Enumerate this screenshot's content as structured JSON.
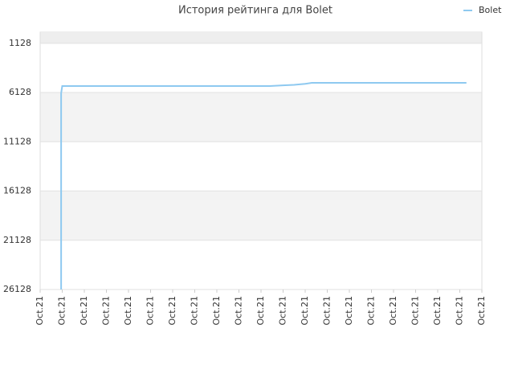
{
  "chart_data": {
    "type": "line",
    "title": "История рейтинга для Bolet",
    "x": [
      0.95,
      0.95,
      1.0,
      10.4,
      11.0,
      11.5,
      12.0,
      12.3,
      19.3
    ],
    "series": [
      {
        "name": "Bolet",
        "color": "#8ec9f0",
        "values": [
          26128,
          6200,
          5472,
          5472,
          5400,
          5350,
          5250,
          5144,
          5144
        ]
      }
    ],
    "xlim": [
      0,
      20
    ],
    "xticks": [
      {
        "value": 0,
        "label": "Oct.21"
      },
      {
        "value": 1,
        "label": "Oct.21"
      },
      {
        "value": 2,
        "label": "Oct.21"
      },
      {
        "value": 3,
        "label": "Oct.21"
      },
      {
        "value": 4,
        "label": "Oct.21"
      },
      {
        "value": 5,
        "label": "Oct.21"
      },
      {
        "value": 6,
        "label": "Oct.21"
      },
      {
        "value": 7,
        "label": "Oct.21"
      },
      {
        "value": 8,
        "label": "Oct.21"
      },
      {
        "value": 9,
        "label": "Oct.21"
      },
      {
        "value": 10,
        "label": "Oct.21"
      },
      {
        "value": 11,
        "label": "Oct.21"
      },
      {
        "value": 12,
        "label": "Oct.21"
      },
      {
        "value": 13,
        "label": "Oct.21"
      },
      {
        "value": 14,
        "label": "Oct.21"
      },
      {
        "value": 15,
        "label": "Oct.21"
      },
      {
        "value": 16,
        "label": "Oct.21"
      },
      {
        "value": 17,
        "label": "Oct.21"
      },
      {
        "value": 18,
        "label": "Oct.21"
      },
      {
        "value": 19,
        "label": "Oct.21"
      },
      {
        "value": 20,
        "label": "Oct.21"
      }
    ],
    "ylim": [
      26128,
      0
    ],
    "yticks": [
      1128,
      6128,
      11128,
      16128,
      21128,
      26128
    ],
    "grid": true,
    "legend": "top-right"
  }
}
